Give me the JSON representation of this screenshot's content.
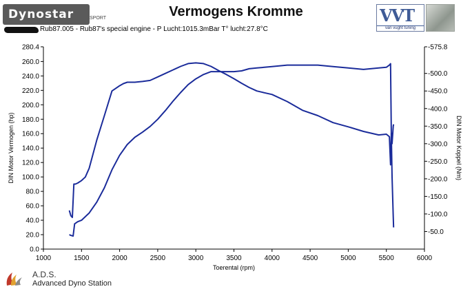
{
  "header": {
    "logo_text": "Dynostar",
    "logo_sub": "SPORT",
    "title": "Vermogens Kromme",
    "subtitle": "Rub87.005 - Rub87's special engine  - P Lucht:1015.3mBar T° lucht:27.8°C",
    "brand_name": "van vught tuning",
    "brand_mark": "VVT"
  },
  "footer": {
    "ads_short": "A.D.S.",
    "ads_full": "Advanced Dyno Station"
  },
  "colors": {
    "curve": "#1a2b9a",
    "axis": "#000000",
    "plot_bg": "#ffffff",
    "brand": "#3f5b96"
  },
  "chart_data": {
    "type": "line",
    "title": "Vermogens Kromme",
    "xlabel": "Toerental (rpm)",
    "ylabel_left": "DIN Motor Vermogen (hp)",
    "ylabel_right": "DIN Motor Koppel (Nm)",
    "xlim": [
      1000,
      6000
    ],
    "ylim_left": [
      0,
      280.4
    ],
    "ylim_right": [
      0,
      575.8
    ],
    "grid": false,
    "x_ticks": [
      "1000",
      "1500",
      "2000",
      "2500",
      "3000",
      "3500",
      "4000",
      "4500",
      "5000",
      "5500",
      "6000"
    ],
    "y_left_ticks": [
      "0.0",
      "20.0",
      "40.0",
      "60.0",
      "80.0",
      "100.0",
      "120.0",
      "140.0",
      "160.0",
      "180.0",
      "200.0",
      "220.0",
      "240.0",
      "260.0",
      "280.4"
    ],
    "y_right_ticks": [
      "-50.0",
      "-100.0",
      "-150.0",
      "-200.0",
      "-250.0",
      "-300.0",
      "-350.0",
      "-400.0",
      "-450.0",
      "-500.0",
      "-575.8"
    ],
    "y_right_values": [
      50,
      100,
      150,
      200,
      250,
      300,
      350,
      400,
      450,
      500,
      575.8
    ],
    "series": [
      {
        "axis": "left",
        "x": [
          1340,
          1360,
          1390,
          1410,
          1450,
          1500,
          1600,
          1700,
          1800,
          1900,
          2000,
          2100,
          2200,
          2300,
          2400,
          2500,
          2600,
          2700,
          2800,
          2900,
          3000,
          3100,
          3200,
          3300,
          3400,
          3500,
          3600,
          3700,
          3800,
          3900,
          4000,
          4200,
          4400,
          4600,
          4800,
          5000,
          5200,
          5400,
          5500,
          5540,
          5555,
          5565,
          5575,
          5590,
          5595
        ],
        "y": [
          20,
          19,
          18,
          35,
          38,
          40,
          50,
          65,
          85,
          110,
          130,
          145,
          155,
          162,
          170,
          180,
          192,
          205,
          217,
          228,
          236,
          242,
          246,
          246,
          246,
          246,
          247,
          250,
          251,
          252,
          253,
          255,
          255,
          255,
          253,
          251,
          249,
          251,
          252,
          255,
          257,
          160,
          100,
          45,
          30
        ]
      },
      {
        "axis": "right",
        "x": [
          1340,
          1360,
          1380,
          1400,
          1420,
          1450,
          1500,
          1550,
          1600,
          1700,
          1800,
          1900,
          2000,
          2050,
          2100,
          2200,
          2300,
          2400,
          2500,
          2600,
          2700,
          2800,
          2900,
          3000,
          3100,
          3200,
          3300,
          3400,
          3500,
          3600,
          3700,
          3800,
          3900,
          4000,
          4200,
          4400,
          4600,
          4800,
          5000,
          5200,
          5400,
          5500,
          5540,
          5555,
          5565,
          5575,
          5590,
          5595
        ],
        "y": [
          110,
          95,
          90,
          185,
          185,
          188,
          195,
          205,
          230,
          310,
          380,
          450,
          465,
          471,
          475,
          475,
          477,
          480,
          490,
          500,
          510,
          520,
          528,
          530,
          528,
          520,
          508,
          497,
          485,
          472,
          460,
          450,
          445,
          440,
          420,
          395,
          380,
          360,
          348,
          335,
          325,
          327,
          320,
          240,
          330,
          300,
          350,
          355
        ]
      }
    ]
  }
}
